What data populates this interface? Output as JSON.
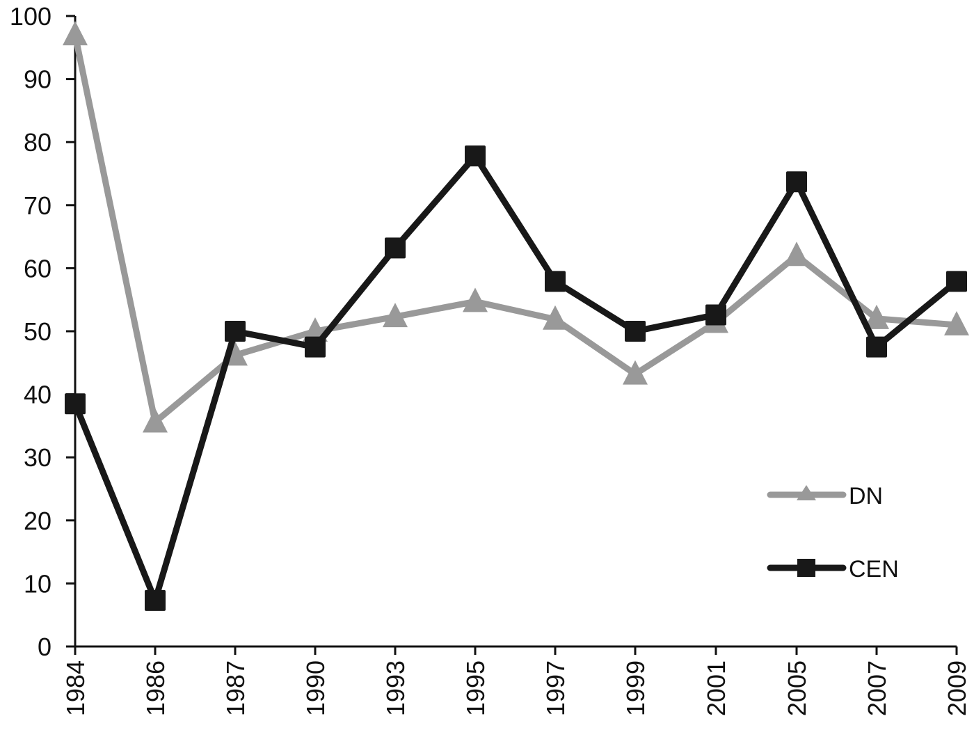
{
  "chart_data": {
    "type": "line",
    "title": "",
    "xlabel": "",
    "ylabel": "",
    "ylim": [
      0,
      100
    ],
    "yticks": [
      0,
      10,
      20,
      30,
      40,
      50,
      60,
      70,
      80,
      90,
      100
    ],
    "grid": false,
    "legend_position": "right-lower-inside",
    "categories": [
      "1984",
      "1986",
      "1987",
      "1990",
      "1993",
      "1995",
      "1997",
      "1999",
      "2001",
      "2005",
      "2007",
      "2009"
    ],
    "series": [
      {
        "name": "DN",
        "color": "#999999",
        "marker": "triangle",
        "values": [
          97,
          35.6,
          46.2,
          50,
          52.3,
          54.7,
          51.9,
          43.2,
          51.4,
          62,
          52,
          51
        ]
      },
      {
        "name": "CEN",
        "color": "#181818",
        "marker": "square",
        "values": [
          38.5,
          7.3,
          50,
          47.5,
          63.2,
          77.8,
          57.9,
          50,
          52.6,
          73.7,
          47.5,
          57.9
        ]
      }
    ]
  },
  "legend": {
    "items": [
      {
        "label": "DN"
      },
      {
        "label": "CEN"
      }
    ]
  }
}
